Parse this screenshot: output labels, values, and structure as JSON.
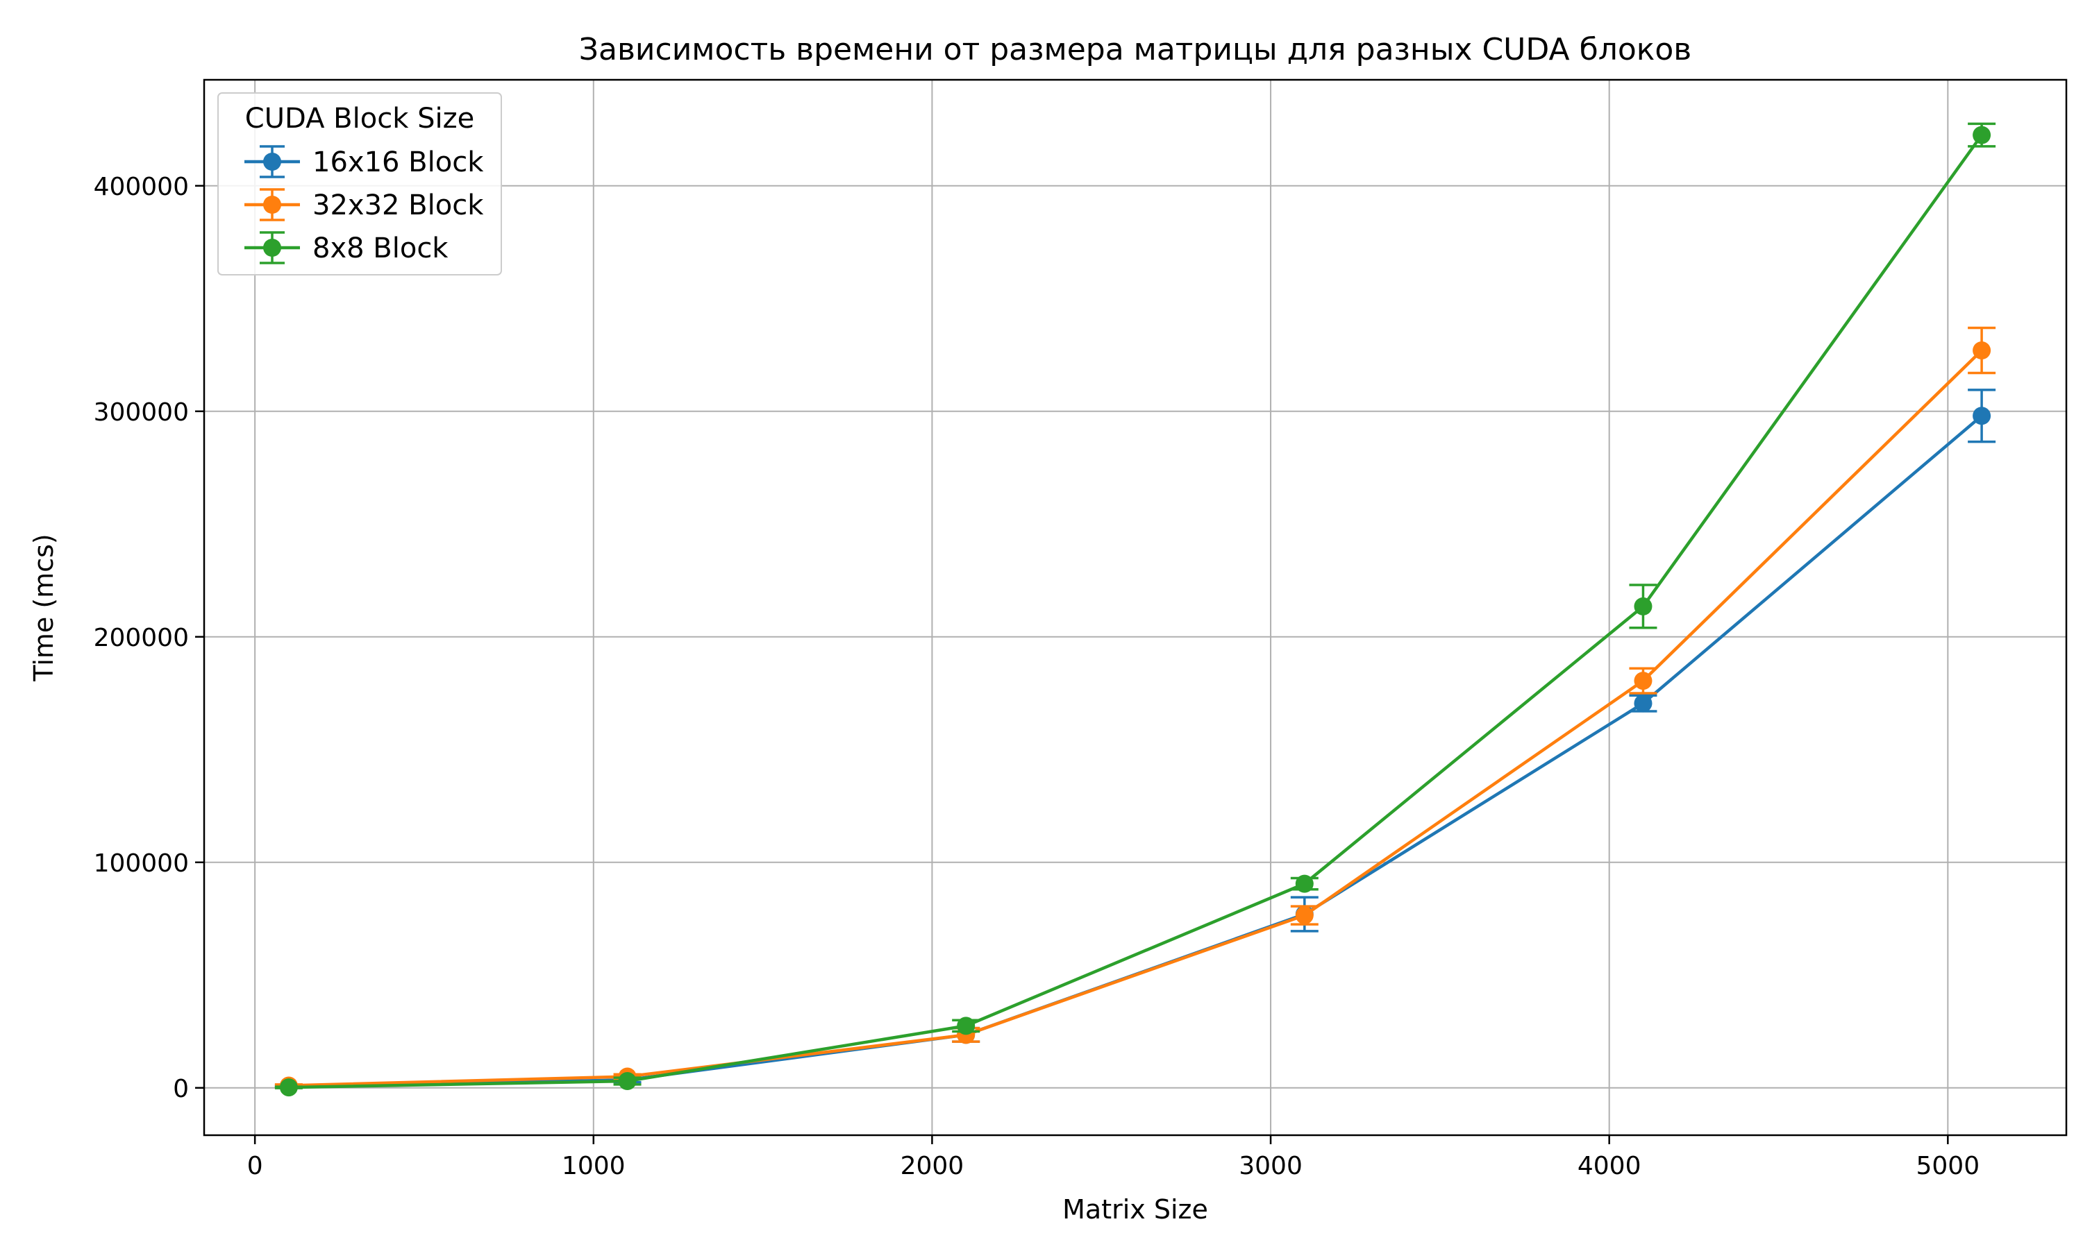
{
  "chart_data": {
    "type": "line",
    "title": "Зависимость времени от размера матрицы для разных CUDA блоков",
    "xlabel": "Matrix Size",
    "ylabel": "Time (mcs)",
    "xlim": [
      -150,
      5350
    ],
    "ylim": [
      -21000,
      447000
    ],
    "xticks": [
      0,
      1000,
      2000,
      3000,
      4000,
      5000
    ],
    "yticks": [
      0,
      100000,
      200000,
      300000,
      400000
    ],
    "grid": true,
    "legend": {
      "title": "CUDA Block Size",
      "placement": "top-left"
    },
    "x": [
      100,
      1100,
      2100,
      3100,
      4100,
      5100
    ],
    "series": [
      {
        "name": "16x16 Block",
        "color": "#1f77b4",
        "values": [
          800,
          3500,
          23500,
          77000,
          170500,
          298000
        ],
        "errors": [
          500,
          1000,
          3000,
          7500,
          3500,
          11500
        ]
      },
      {
        "name": "32x32 Block",
        "color": "#ff7f0e",
        "values": [
          1000,
          5000,
          23500,
          76500,
          180500,
          327000
        ],
        "errors": [
          500,
          1000,
          3000,
          4000,
          5500,
          10000
        ]
      },
      {
        "name": "8x8 Block",
        "color": "#2ca02c",
        "values": [
          200,
          3000,
          27500,
          90500,
          213500,
          422500
        ],
        "errors": [
          300,
          1500,
          2500,
          2500,
          9500,
          5000
        ]
      }
    ]
  }
}
